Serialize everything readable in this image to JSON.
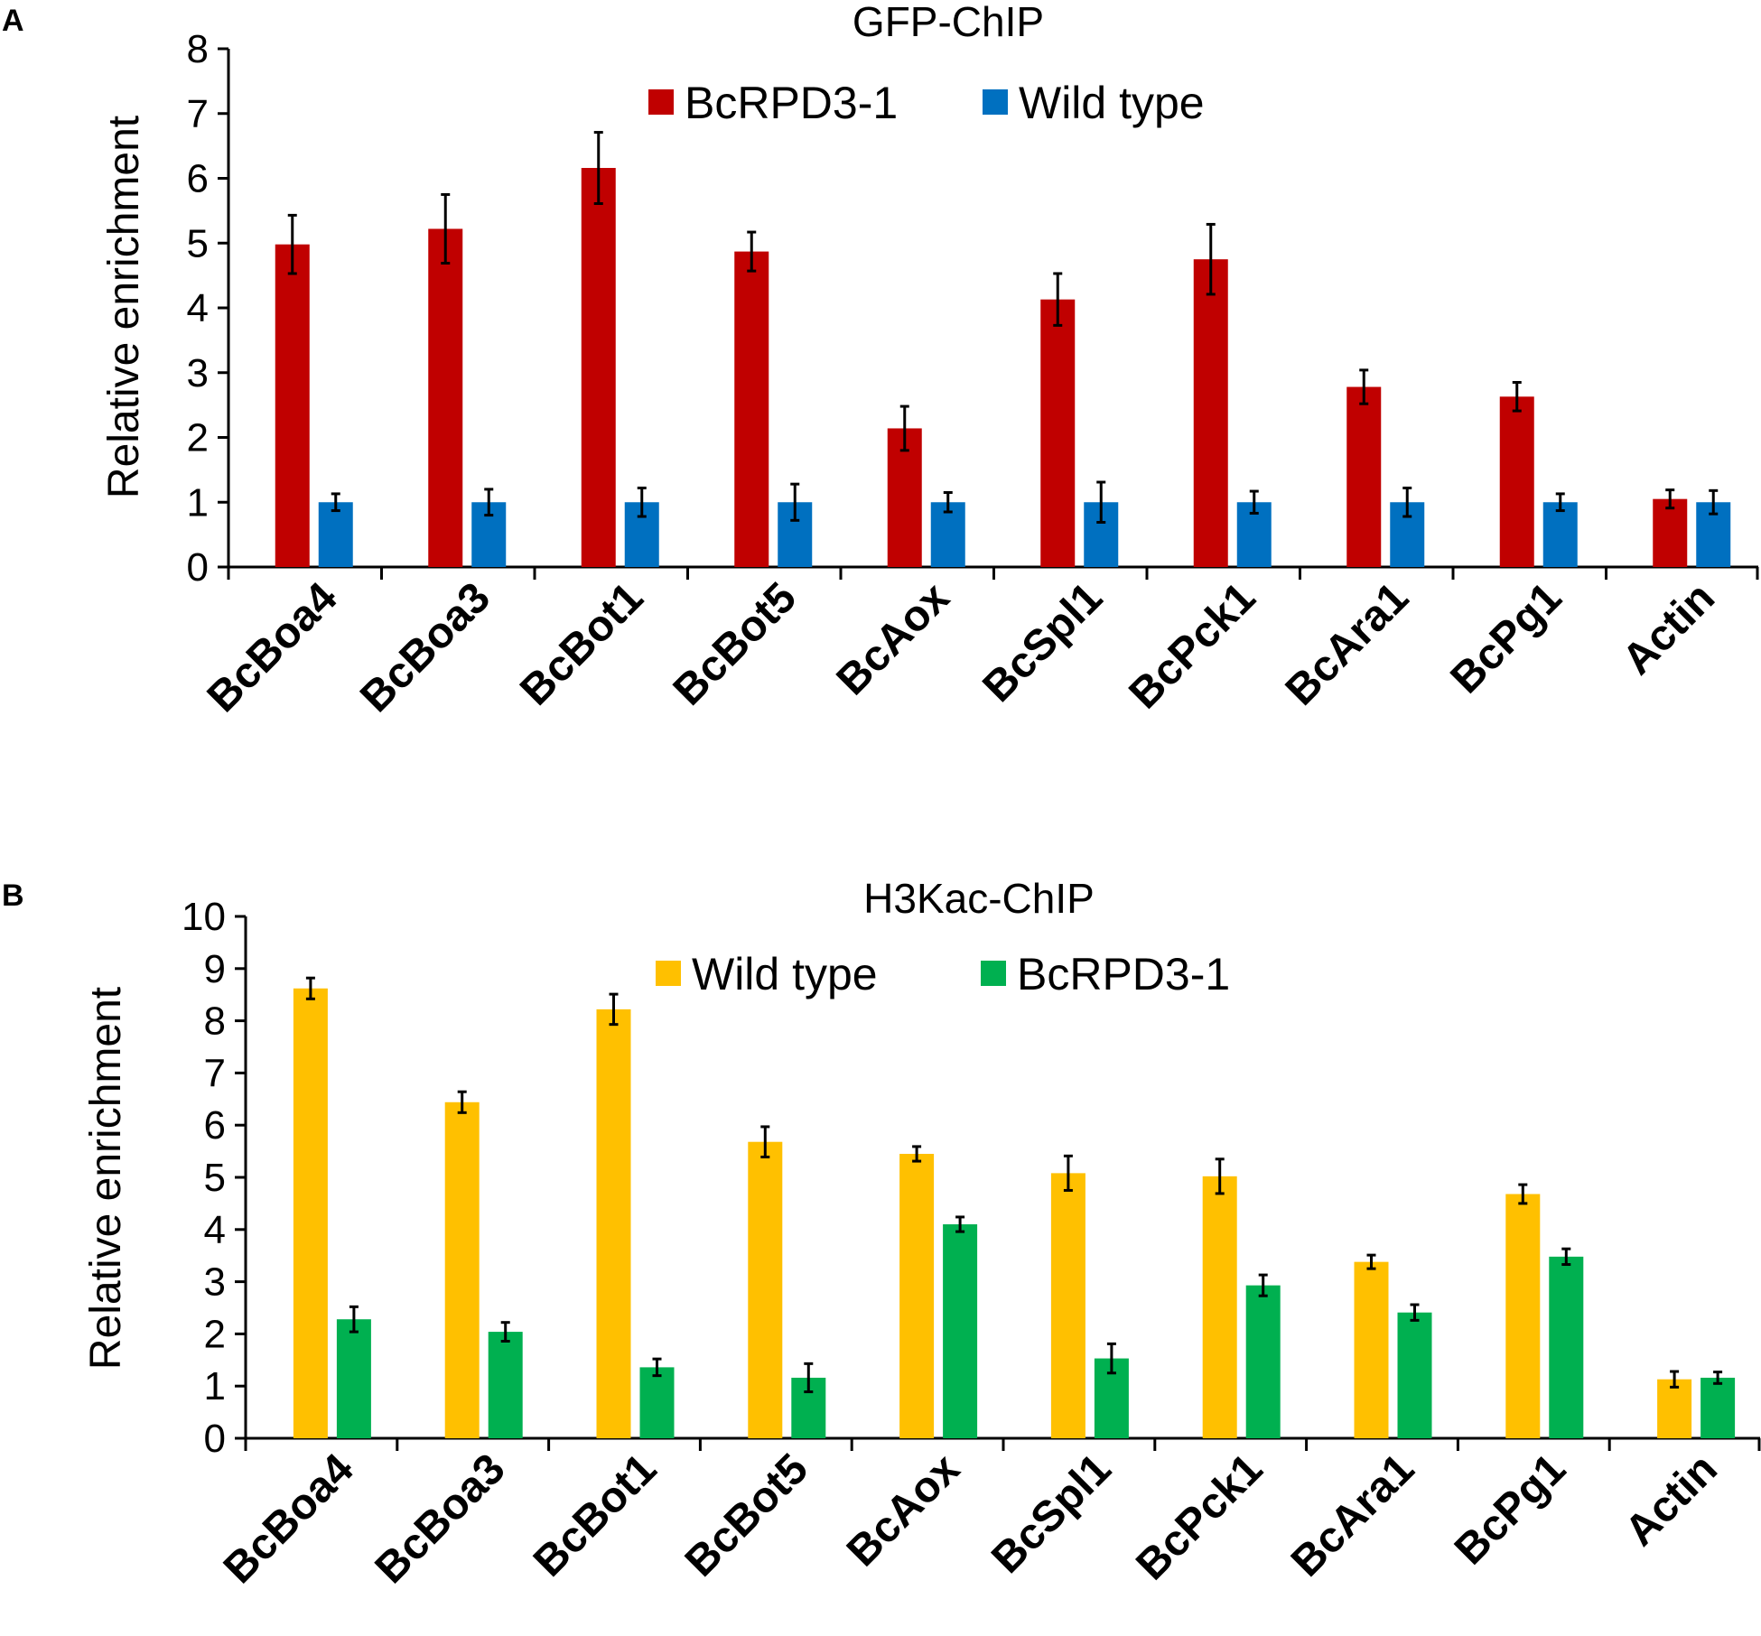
{
  "chart_data": [
    {
      "panel": "A",
      "type": "bar",
      "title": "GFP-ChIP",
      "xlabel": "",
      "ylabel": "Relative enrichment",
      "ylim": [
        0,
        8
      ],
      "yticks": [
        0,
        1,
        2,
        3,
        4,
        5,
        6,
        7,
        8
      ],
      "grid": false,
      "legend_position": "top-center",
      "categories": [
        "BcBoa4",
        "BcBoa3",
        "BcBot1",
        "BcBot5",
        "BcAox",
        "BcSpl1",
        "BcPck1",
        "BcAra1",
        "BcPg1",
        "Actin"
      ],
      "series": [
        {
          "name": "BcRPD3-1",
          "color": "#C00000",
          "values": [
            4.98,
            5.22,
            6.16,
            4.87,
            2.14,
            4.13,
            4.75,
            2.78,
            2.63,
            1.05
          ],
          "errors": [
            0.45,
            0.53,
            0.55,
            0.3,
            0.34,
            0.4,
            0.54,
            0.26,
            0.22,
            0.14
          ]
        },
        {
          "name": "Wild type",
          "color": "#0070C0",
          "values": [
            1.0,
            1.0,
            1.0,
            1.0,
            1.0,
            1.0,
            1.0,
            1.0,
            1.0,
            1.0
          ],
          "errors": [
            0.13,
            0.2,
            0.22,
            0.28,
            0.15,
            0.31,
            0.17,
            0.22,
            0.13,
            0.18
          ]
        }
      ]
    },
    {
      "panel": "B",
      "type": "bar",
      "title": "H3Kac-ChIP",
      "xlabel": "",
      "ylabel": "Relative enrichment",
      "ylim": [
        0,
        10
      ],
      "yticks": [
        0,
        1,
        2,
        3,
        4,
        5,
        6,
        7,
        8,
        9,
        10
      ],
      "grid": false,
      "legend_position": "top-center",
      "categories": [
        "BcBoa4",
        "BcBoa3",
        "BcBot1",
        "BcBot5",
        "BcAox",
        "BcSpl1",
        "BcPck1",
        "BcAra1",
        "BcPg1",
        "Actin"
      ],
      "series": [
        {
          "name": "Wild type",
          "color": "#FFC000",
          "values": [
            8.62,
            6.44,
            8.22,
            5.68,
            5.45,
            5.08,
            5.02,
            3.38,
            4.68,
            1.13
          ],
          "errors": [
            0.2,
            0.2,
            0.29,
            0.29,
            0.14,
            0.33,
            0.33,
            0.13,
            0.18,
            0.15
          ]
        },
        {
          "name": "BcRPD3-1",
          "color": "#00B050",
          "values": [
            2.28,
            2.04,
            1.36,
            1.16,
            4.1,
            1.53,
            2.93,
            2.41,
            3.48,
            1.16
          ],
          "errors": [
            0.24,
            0.18,
            0.16,
            0.27,
            0.14,
            0.28,
            0.2,
            0.15,
            0.15,
            0.11
          ]
        }
      ]
    }
  ]
}
